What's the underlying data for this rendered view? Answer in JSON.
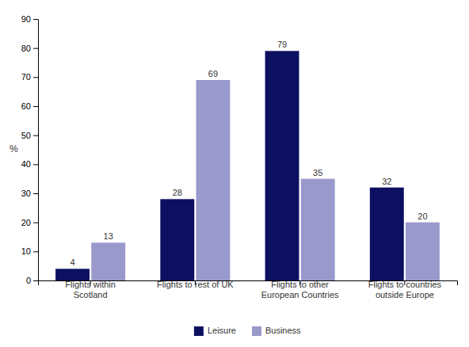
{
  "chart_data": {
    "type": "bar",
    "categories": [
      "Flights within\nScotland",
      "Flights to rest of UK",
      "Flights to other\nEuropean Countries",
      "Flights to countries\noutside Europe"
    ],
    "series": [
      {
        "name": "Leisure",
        "color": "#0d1061",
        "values": [
          4,
          28,
          79,
          32
        ]
      },
      {
        "name": "Business",
        "color": "#9999cc",
        "values": [
          13,
          69,
          35,
          20
        ]
      }
    ],
    "ylabel": "%",
    "ylim": [
      0,
      90
    ],
    "yticks": [
      0,
      10,
      20,
      30,
      40,
      50,
      60,
      70,
      80,
      90
    ],
    "data_labels": true,
    "grid": false,
    "legend": "bottom"
  }
}
